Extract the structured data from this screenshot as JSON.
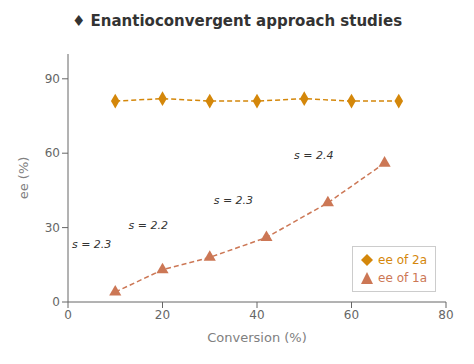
{
  "chart_data": {
    "type": "scatter",
    "title": "♦ Enantioconvergent approach studies",
    "xlabel": "Conversion (%)",
    "ylabel": "ee (%)",
    "xlim": [
      0,
      80
    ],
    "ylim": [
      0,
      100
    ],
    "xticks": [
      0,
      20,
      40,
      60,
      80
    ],
    "yticks": [
      0,
      30,
      60,
      90
    ],
    "grid": false,
    "legend": "lower right",
    "series": [
      {
        "name": "ee of 2a",
        "color": "#d4870a",
        "marker": "diamond",
        "line_style": "dashed",
        "x": [
          10,
          20,
          30,
          40,
          50,
          60,
          70
        ],
        "values": [
          81,
          82,
          81,
          81,
          82,
          81,
          81
        ]
      },
      {
        "name": "ee of 1a",
        "color": "#cc7755",
        "marker": "triangle",
        "line_style": "dashed",
        "x": [
          10,
          20,
          30,
          42,
          55,
          67
        ],
        "values": [
          4,
          13,
          18,
          26,
          40,
          56
        ]
      }
    ],
    "annotations": [
      {
        "x": 5,
        "y": 20,
        "text": "s = 2.3"
      },
      {
        "x": 17,
        "y": 28,
        "text": "s = 2.2"
      },
      {
        "x": 35,
        "y": 38,
        "text": "s = 2.3"
      },
      {
        "x": 52,
        "y": 56,
        "text": "s = 2.4"
      }
    ]
  }
}
